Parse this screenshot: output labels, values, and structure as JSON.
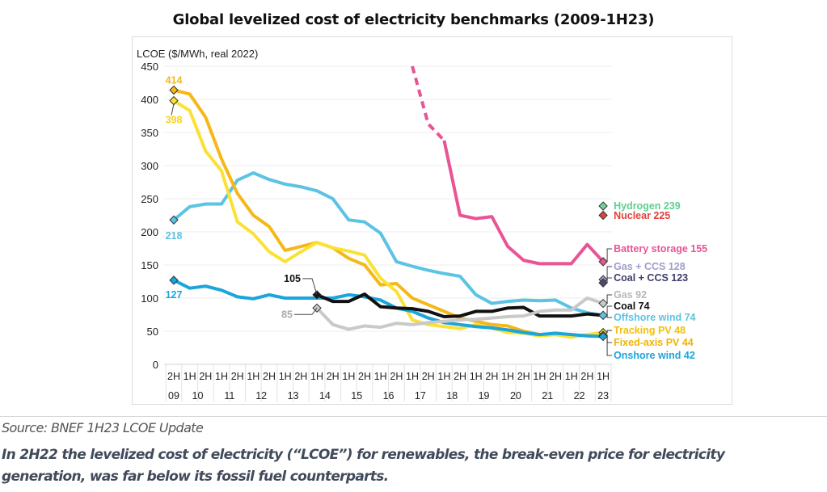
{
  "title": "Global levelized cost of electricity benchmarks (2009-1H23)",
  "source": "Source: BNEF 1H23 LCOE Update",
  "caption": "In 2H22 the levelized cost of electricity (“LCOE”) for renewables, the break-even price for electricity generation, was far below its fossil fuel counterparts.",
  "chart_data": {
    "type": "line",
    "title": "Global levelized cost of electricity benchmarks (2009-1H23)",
    "ylabel": "LCOE ($/MWh, real 2022)",
    "xlabel": "",
    "ylim": [
      0,
      450
    ],
    "yticks": [
      0,
      50,
      100,
      150,
      200,
      250,
      300,
      350,
      400,
      450
    ],
    "grid": true,
    "x": [
      "2H09",
      "1H10",
      "2H10",
      "1H11",
      "2H11",
      "1H12",
      "2H12",
      "1H13",
      "2H13",
      "1H14",
      "2H14",
      "1H15",
      "2H15",
      "1H16",
      "2H16",
      "1H17",
      "2H17",
      "1H18",
      "2H18",
      "1H19",
      "2H19",
      "1H20",
      "2H20",
      "1H21",
      "2H21",
      "1H22",
      "2H22",
      "1H23"
    ],
    "x_half_labels": [
      "2H",
      "1H",
      "2H",
      "1H",
      "2H",
      "1H",
      "2H",
      "1H",
      "2H",
      "1H",
      "2H",
      "1H",
      "2H",
      "1H",
      "2H",
      "1H",
      "2H",
      "1H",
      "2H",
      "1H",
      "2H",
      "1H",
      "2H",
      "1H",
      "2H",
      "1H",
      "2H",
      "1H"
    ],
    "x_year_labels": [
      {
        "label": "09",
        "start": 0,
        "end": 0
      },
      {
        "label": "10",
        "start": 1,
        "end": 2
      },
      {
        "label": "11",
        "start": 3,
        "end": 4
      },
      {
        "label": "12",
        "start": 5,
        "end": 6
      },
      {
        "label": "13",
        "start": 7,
        "end": 8
      },
      {
        "label": "14",
        "start": 9,
        "end": 10
      },
      {
        "label": "15",
        "start": 11,
        "end": 12
      },
      {
        "label": "16",
        "start": 13,
        "end": 14
      },
      {
        "label": "17",
        "start": 15,
        "end": 16
      },
      {
        "label": "18",
        "start": 17,
        "end": 18
      },
      {
        "label": "19",
        "start": 19,
        "end": 20
      },
      {
        "label": "20",
        "start": 21,
        "end": 22
      },
      {
        "label": "21",
        "start": 23,
        "end": 24
      },
      {
        "label": "22",
        "start": 25,
        "end": 26
      },
      {
        "label": "23",
        "start": 27,
        "end": 27
      }
    ],
    "series": [
      {
        "name": "Offshore wind",
        "color": "#5bc3e3",
        "start": 0,
        "values": [
          218,
          238,
          242,
          242,
          278,
          289,
          279,
          272,
          268,
          262,
          250,
          218,
          215,
          198,
          155,
          148,
          142,
          137,
          133,
          105,
          92,
          95,
          97,
          96,
          97,
          85,
          78,
          74
        ],
        "start_label": "218",
        "end_label": "Offshore wind  74"
      },
      {
        "name": "Fixed-axis PV",
        "color": "#f5b818",
        "start": 0,
        "values": [
          414,
          408,
          373,
          310,
          258,
          225,
          208,
          172,
          178,
          184,
          176,
          160,
          150,
          120,
          122,
          100,
          90,
          80,
          70,
          65,
          60,
          58,
          50,
          45,
          45,
          43,
          44,
          44
        ],
        "start_label": "414",
        "end_label": "Fixed-axis PV  44"
      },
      {
        "name": "Tracking PV",
        "color": "#fbe134",
        "start": 0,
        "values": [
          398,
          383,
          322,
          292,
          215,
          197,
          170,
          155,
          170,
          184,
          176,
          171,
          165,
          130,
          110,
          67,
          60,
          57,
          54,
          60,
          55,
          48,
          47,
          43,
          45,
          41,
          45,
          48
        ],
        "start_label": "398",
        "end_label": "Tracking PV  48"
      },
      {
        "name": "Onshore wind",
        "color": "#1aa5dc",
        "start": 0,
        "values": [
          127,
          115,
          118,
          112,
          102,
          99,
          105,
          100,
          100,
          100,
          100,
          105,
          102,
          97,
          85,
          80,
          70,
          63,
          60,
          57,
          55,
          52,
          48,
          45,
          47,
          45,
          43,
          42
        ],
        "start_label": "127",
        "end_label": "Onshore wind  42"
      },
      {
        "name": "Coal",
        "color": "#111111",
        "start": 9,
        "values": [
          105,
          95,
          95,
          106,
          87,
          85,
          84,
          80,
          72,
          73,
          80,
          80,
          85,
          86,
          73,
          73,
          73,
          76,
          74
        ],
        "start_label": "105",
        "end_label": "Coal  74"
      },
      {
        "name": "Gas",
        "color": "#c9c9c9",
        "start": 9,
        "values": [
          85,
          60,
          53,
          58,
          56,
          62,
          60,
          63,
          65,
          67,
          68,
          70,
          72,
          73,
          80,
          82,
          82,
          100,
          92
        ],
        "start_label": "85",
        "end_label": "Gas  92"
      },
      {
        "name": "Battery storage",
        "color": "#e95495",
        "start": 15,
        "values": [
          450,
          363,
          338,
          225,
          220,
          223,
          178,
          157,
          152,
          152,
          152,
          181,
          155
        ],
        "dashed_segments": 2,
        "end_label": "Battery storage  155"
      },
      {
        "name": "Gas + CCS",
        "color": "#9e9ec8",
        "start": 27,
        "values": [
          128
        ],
        "end_label": "Gas + CCS  128"
      },
      {
        "name": "Coal + CCS",
        "color": "#4b4a7a",
        "start": 27,
        "values": [
          123
        ],
        "end_label": "Coal + CCS  123"
      },
      {
        "name": "Hydrogen",
        "color": "#6fd39c",
        "start": 27,
        "values": [
          239
        ],
        "end_label": "Hydrogen  239"
      },
      {
        "name": "Nuclear",
        "color": "#e2413b",
        "start": 27,
        "values": [
          225
        ],
        "end_label": "Nuclear  225"
      }
    ],
    "legend": "right-side end labels"
  }
}
